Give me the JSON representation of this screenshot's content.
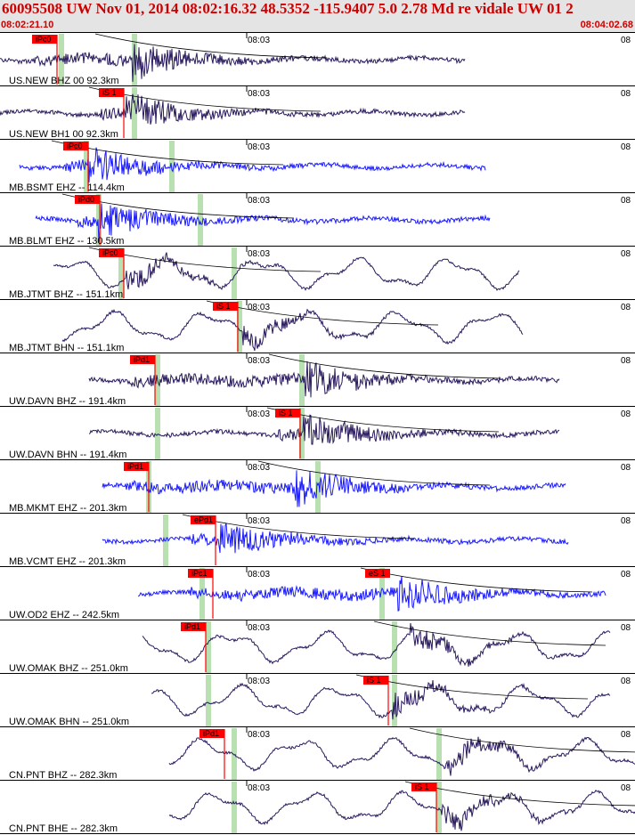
{
  "header": {
    "title": "60095508 UW Nov 01, 2014 08:02:16.32   48.5352 -115.9407  5.0 2.78 Md re vidale UW 01   2",
    "time_start": "08:02:21.10",
    "time_end": "08:04:02.68"
  },
  "colors": {
    "trace_dark": "#2a1a5e",
    "trace_blue": "#1a1aff",
    "pick": "#ff0000",
    "window": "#b8e0b0",
    "arrival_curve": "#000000"
  },
  "minute_tick": "08:03",
  "edge_tick": "08",
  "panels": [
    {
      "label": "US.NEW BHZ 00 92.3km",
      "pick": "iPc0",
      "trace": "dark",
      "style": "hf"
    },
    {
      "label": "US.NEW BH1 00 92.3km",
      "pick": "iS 1",
      "trace": "dark",
      "style": "hf"
    },
    {
      "label": "MB.BSMT EHZ -- 114.4km",
      "pick": "iPc0",
      "trace": "blue",
      "style": "hf"
    },
    {
      "label": "MB.BLMT EHZ -- 130.5km",
      "pick": "iPd0",
      "trace": "blue",
      "style": "hf"
    },
    {
      "label": "MB.JTMT BHZ -- 151.1km",
      "pick": "iPc0",
      "trace": "dark",
      "style": "lf"
    },
    {
      "label": "MB.JTMT BHN -- 151.1km",
      "pick": "iS 1",
      "trace": "dark",
      "style": "lf"
    },
    {
      "label": "UW.DAVN BHZ -- 191.4km",
      "pick": "iPd1",
      "trace": "dark",
      "style": "hf"
    },
    {
      "label": "UW.DAVN BHN -- 191.4km",
      "pick": "iS 1",
      "trace": "dark",
      "style": "hf"
    },
    {
      "label": "MB.MKMT EHZ -- 201.3km",
      "pick": "iPd1",
      "trace": "blue",
      "style": "hf"
    },
    {
      "label": "MB.VCMT EHZ -- 201.3km",
      "pick": "ePd1",
      "trace": "blue",
      "style": "hf"
    },
    {
      "label": "UW.OD2 EHZ -- 242.5km",
      "pick": "iPc1",
      "pick2": "eS 1",
      "trace": "blue",
      "style": "hf"
    },
    {
      "label": "UW.OMAK BHZ -- 251.0km",
      "pick": "iPd1",
      "trace": "dark",
      "style": "lf"
    },
    {
      "label": "UW.OMAK BHN -- 251.0km",
      "pick": "iS 1",
      "trace": "dark",
      "style": "lf"
    },
    {
      "label": "CN.PNT BHZ -- 282.3km",
      "pick": "iPd1",
      "trace": "dark",
      "style": "lf"
    },
    {
      "label": "CN.PNT BHE -- 282.3km",
      "pick": "iS 1",
      "trace": "dark",
      "style": "lf"
    }
  ]
}
